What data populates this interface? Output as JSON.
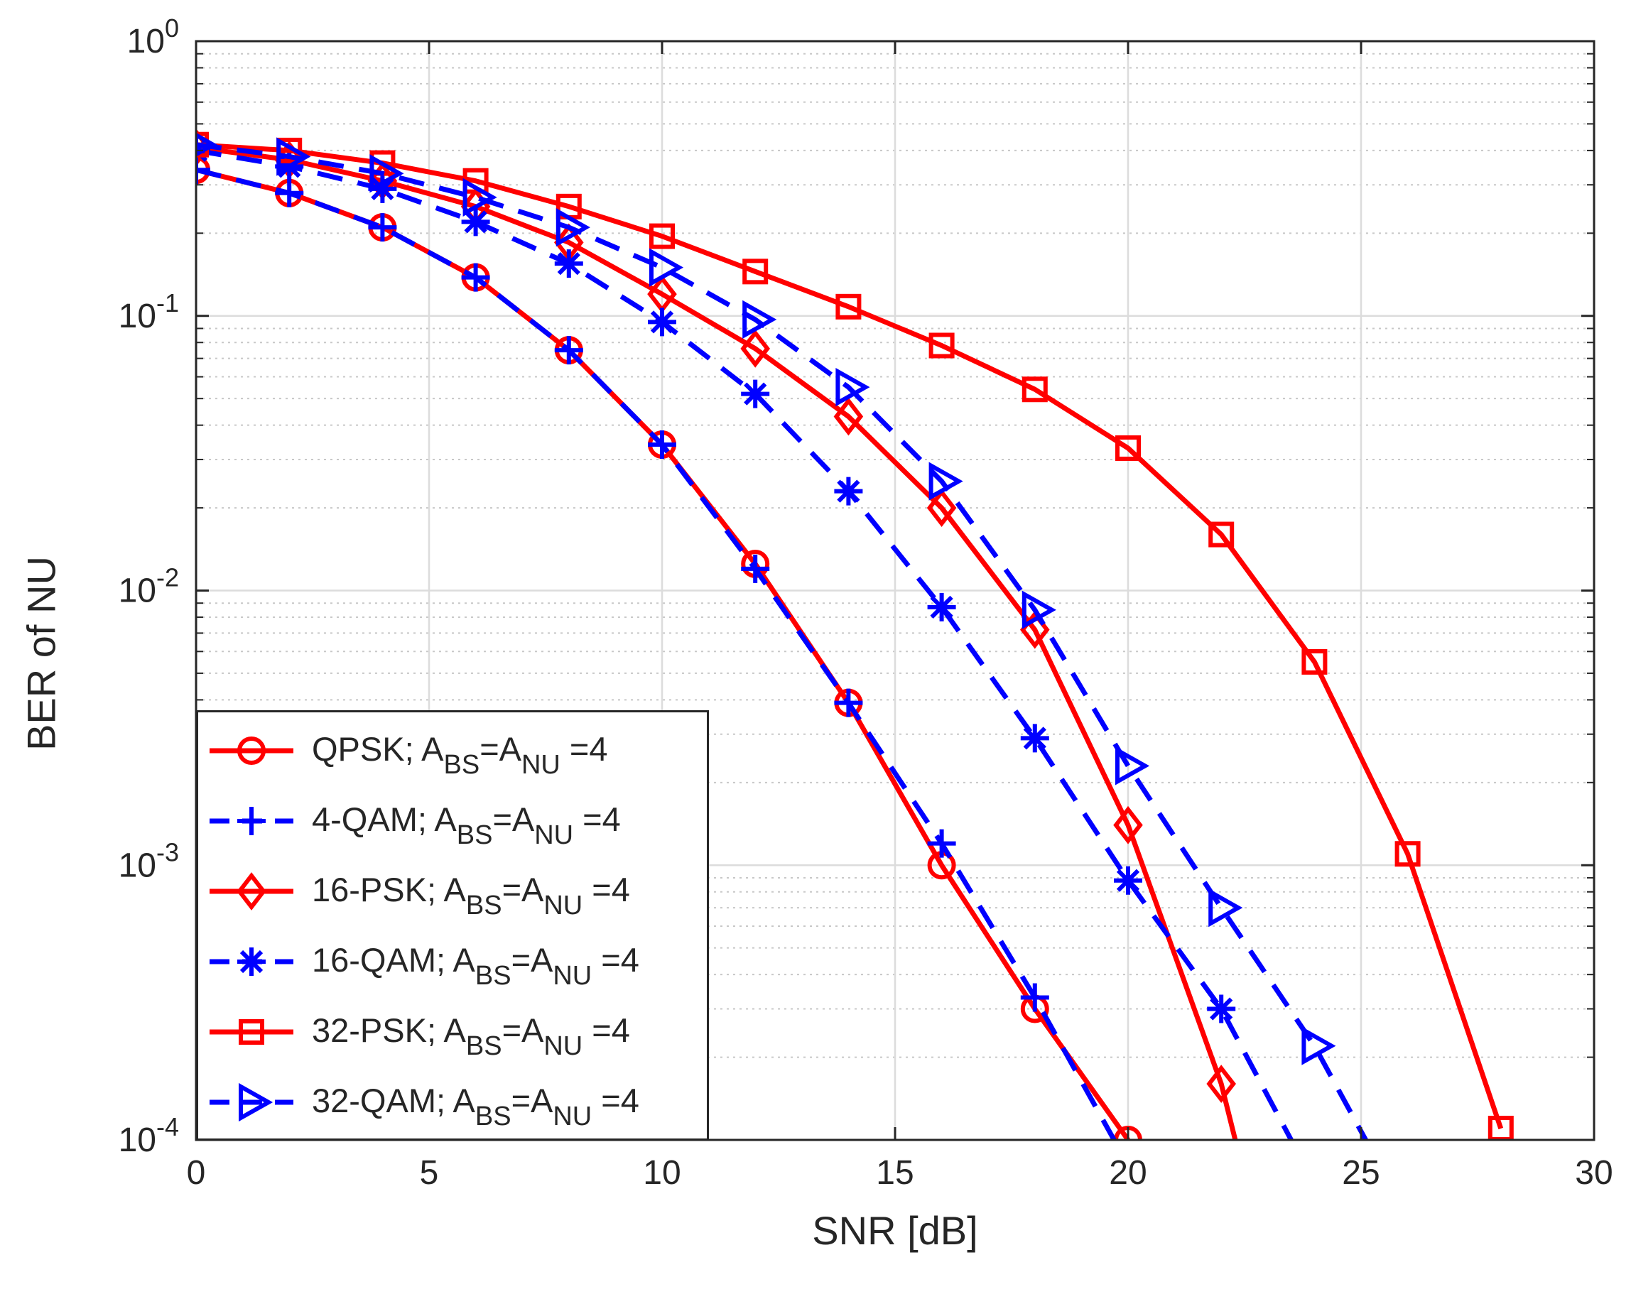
{
  "chart_data": {
    "type": "line",
    "title": "",
    "xlabel": "SNR [dB]",
    "ylabel": "BER of NU",
    "xlim": [
      0,
      30
    ],
    "ylim": [
      0.0001,
      1
    ],
    "yscale": "log",
    "grid": true,
    "minor_grid": true,
    "xticks": [
      0,
      5,
      10,
      15,
      20,
      25,
      30
    ],
    "yticks": [
      {
        "mantissa": "10",
        "exp": "0"
      },
      {
        "mantissa": "10",
        "exp": "-1"
      },
      {
        "mantissa": "10",
        "exp": "-2"
      },
      {
        "mantissa": "10",
        "exp": "-3"
      },
      {
        "mantissa": "10",
        "exp": "-4"
      }
    ],
    "legend_position": "bottom-left",
    "series": [
      {
        "name": "QPSK",
        "label_prefix": "QPSK; A",
        "sub1": "BS",
        "mid": "=A",
        "sub2": "NU",
        "suffix": " =4",
        "color": "#ff0000",
        "dash": "solid",
        "marker": "circle",
        "x": [
          0,
          2,
          4,
          6,
          8,
          10,
          12,
          14,
          16,
          18,
          20
        ],
        "y": [
          0.34,
          0.28,
          0.21,
          0.138,
          0.075,
          0.034,
          0.0125,
          0.0039,
          0.001,
          0.0003,
          0.0001
        ]
      },
      {
        "name": "4-QAM",
        "label_prefix": "4-QAM; A",
        "sub1": "BS",
        "mid": "=A",
        "sub2": "NU",
        "suffix": " =4",
        "color": "#0000ff",
        "dash": "dashed",
        "marker": "plus",
        "x": [
          0,
          2,
          4,
          6,
          8,
          10,
          12,
          14,
          16,
          18,
          19.7
        ],
        "y": [
          0.34,
          0.28,
          0.21,
          0.138,
          0.075,
          0.034,
          0.012,
          0.0039,
          0.0012,
          0.00033,
          0.0001
        ]
      },
      {
        "name": "16-PSK",
        "label_prefix": "16-PSK; A",
        "sub1": "BS",
        "mid": "=A",
        "sub2": "NU",
        "suffix": " =4",
        "color": "#ff0000",
        "dash": "solid",
        "marker": "diamond",
        "x": [
          0,
          2,
          4,
          6,
          8,
          10,
          12,
          14,
          16,
          18,
          20,
          22,
          22.3
        ],
        "y": [
          0.41,
          0.37,
          0.31,
          0.25,
          0.185,
          0.12,
          0.076,
          0.043,
          0.02,
          0.0072,
          0.0014,
          0.00016,
          0.0001
        ]
      },
      {
        "name": "16-QAM",
        "label_prefix": "16-QAM; A",
        "sub1": "BS",
        "mid": "=A",
        "sub2": "NU",
        "suffix": " =4",
        "color": "#0000ff",
        "dash": "dashed",
        "marker": "asterisk",
        "x": [
          0,
          2,
          4,
          6,
          8,
          10,
          12,
          14,
          16,
          18,
          20,
          22,
          23.5
        ],
        "y": [
          0.4,
          0.35,
          0.29,
          0.22,
          0.155,
          0.095,
          0.052,
          0.023,
          0.0087,
          0.0029,
          0.00088,
          0.0003,
          0.0001
        ]
      },
      {
        "name": "32-PSK",
        "label_prefix": "32-PSK; A",
        "sub1": "BS",
        "mid": "=A",
        "sub2": "NU",
        "suffix": " =4",
        "color": "#ff0000",
        "dash": "solid",
        "marker": "square",
        "x": [
          0,
          2,
          4,
          6,
          8,
          10,
          12,
          14,
          16,
          18,
          20,
          22,
          24,
          26,
          28
        ],
        "y": [
          0.42,
          0.4,
          0.36,
          0.31,
          0.25,
          0.195,
          0.145,
          0.108,
          0.078,
          0.054,
          0.033,
          0.016,
          0.0055,
          0.0011,
          0.00011
        ]
      },
      {
        "name": "32-QAM",
        "label_prefix": "32-QAM; A",
        "sub1": "BS",
        "mid": "=A",
        "sub2": "NU",
        "suffix": " =4",
        "color": "#0000ff",
        "dash": "dashed",
        "marker": "triangle-right",
        "x": [
          0,
          2,
          4,
          6,
          8,
          10,
          12,
          14,
          16,
          18,
          20,
          22,
          24,
          25.1
        ],
        "y": [
          0.42,
          0.38,
          0.33,
          0.27,
          0.21,
          0.15,
          0.097,
          0.055,
          0.025,
          0.0085,
          0.0023,
          0.0007,
          0.00022,
          0.0001
        ]
      }
    ]
  }
}
